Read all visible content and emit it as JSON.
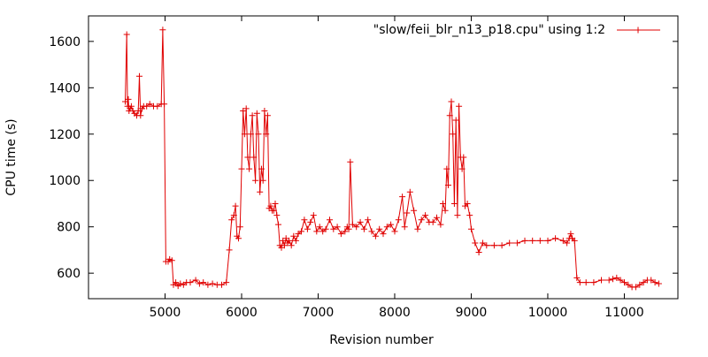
{
  "chart_data": {
    "type": "line",
    "title": "",
    "xlabel": "Revision number",
    "ylabel": "CPU time (s)",
    "xlim": [
      4000,
      11700
    ],
    "ylim": [
      490,
      1710
    ],
    "x_ticks": [
      5000,
      6000,
      7000,
      8000,
      9000,
      10000,
      11000
    ],
    "y_ticks": [
      600,
      800,
      1000,
      1200,
      1400,
      1600
    ],
    "grid": false,
    "legend_position": "top-right",
    "marker": "plus",
    "series": [
      {
        "name": "\"slow/feii_blr_n13_p18.cpu\" using 1:2",
        "color": "#e00000",
        "x": [
          4480,
          4500,
          4510,
          4520,
          4530,
          4545,
          4560,
          4580,
          4600,
          4630,
          4650,
          4665,
          4680,
          4700,
          4720,
          4760,
          4800,
          4850,
          4900,
          4950,
          4970,
          4990,
          5010,
          5040,
          5060,
          5090,
          5110,
          5140,
          5170,
          5200,
          5240,
          5280,
          5330,
          5400,
          5450,
          5500,
          5560,
          5620,
          5680,
          5740,
          5800,
          5840,
          5870,
          5900,
          5920,
          5940,
          5960,
          5980,
          6000,
          6020,
          6040,
          6060,
          6080,
          6100,
          6120,
          6140,
          6160,
          6180,
          6200,
          6220,
          6240,
          6260,
          6280,
          6300,
          6320,
          6340,
          6360,
          6380,
          6400,
          6420,
          6440,
          6460,
          6480,
          6500,
          6520,
          6540,
          6560,
          6580,
          6600,
          6620,
          6650,
          6680,
          6710,
          6740,
          6780,
          6820,
          6860,
          6900,
          6940,
          6980,
          7020,
          7060,
          7100,
          7150,
          7200,
          7250,
          7300,
          7350,
          7380,
          7400,
          7420,
          7450,
          7500,
          7550,
          7600,
          7650,
          7700,
          7750,
          7800,
          7850,
          7900,
          7950,
          8000,
          8050,
          8100,
          8130,
          8160,
          8200,
          8250,
          8300,
          8350,
          8400,
          8450,
          8500,
          8550,
          8600,
          8630,
          8660,
          8680,
          8700,
          8720,
          8740,
          8760,
          8780,
          8800,
          8820,
          8840,
          8860,
          8880,
          8900,
          8920,
          8950,
          8980,
          9000,
          9050,
          9100,
          9150,
          9200,
          9300,
          9400,
          9500,
          9600,
          9700,
          9800,
          9900,
          10000,
          10100,
          10200,
          10250,
          10280,
          10300,
          10320,
          10350,
          10380,
          10420,
          10500,
          10600,
          10700,
          10800,
          10850,
          10900,
          10950,
          11000,
          11050,
          11100,
          11150,
          11200,
          11250,
          11300,
          11350,
          11400,
          11450
        ],
        "y": [
          1340,
          1630,
          1320,
          1350,
          1300,
          1310,
          1320,
          1300,
          1290,
          1280,
          1300,
          1450,
          1280,
          1310,
          1320,
          1320,
          1330,
          1320,
          1320,
          1330,
          1650,
          1330,
          650,
          650,
          660,
          655,
          550,
          560,
          545,
          555,
          550,
          560,
          560,
          570,
          555,
          560,
          550,
          555,
          550,
          550,
          560,
          700,
          830,
          850,
          890,
          760,
          750,
          800,
          1050,
          1300,
          1200,
          1310,
          1100,
          1050,
          1200,
          1280,
          1100,
          1000,
          1290,
          1200,
          950,
          1050,
          1000,
          1300,
          1200,
          1280,
          880,
          890,
          870,
          870,
          900,
          850,
          810,
          720,
          710,
          740,
          720,
          750,
          730,
          740,
          720,
          760,
          740,
          770,
          780,
          830,
          790,
          820,
          850,
          780,
          800,
          780,
          790,
          830,
          790,
          800,
          770,
          780,
          800,
          790,
          1080,
          810,
          800,
          820,
          790,
          830,
          780,
          760,
          790,
          770,
          800,
          810,
          780,
          830,
          930,
          800,
          860,
          950,
          870,
          790,
          830,
          850,
          820,
          820,
          840,
          810,
          900,
          870,
          1050,
          980,
          1280,
          1340,
          1200,
          900,
          1260,
          850,
          1320,
          1100,
          1050,
          1100,
          890,
          900,
          850,
          790,
          730,
          690,
          730,
          720,
          720,
          720,
          730,
          730,
          740,
          740,
          740,
          740,
          750,
          740,
          730,
          750,
          770,
          750,
          740,
          580,
          560,
          560,
          560,
          570,
          570,
          575,
          580,
          570,
          560,
          550,
          540,
          540,
          550,
          560,
          570,
          570,
          560,
          555
        ]
      }
    ]
  }
}
